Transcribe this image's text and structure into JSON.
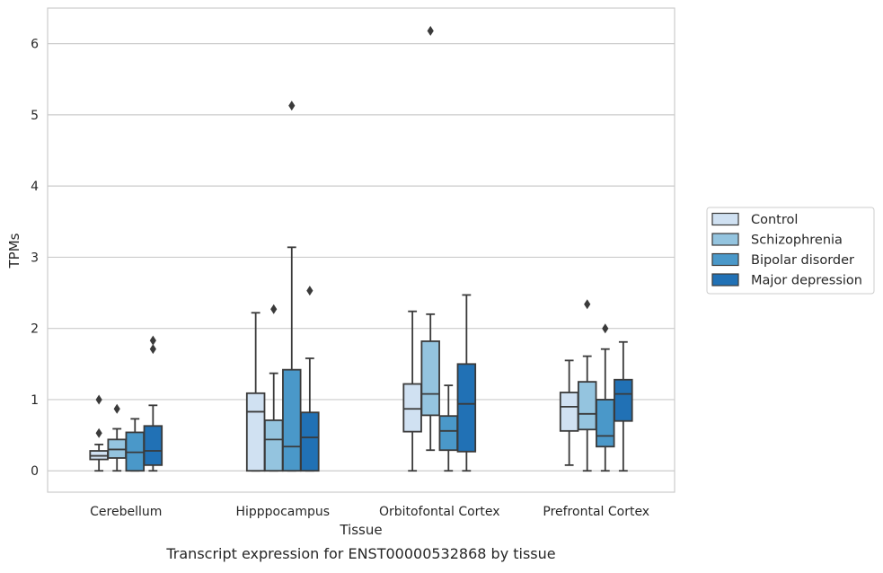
{
  "chart_data": {
    "type": "box",
    "title": "",
    "caption": "Transcript expression for ENST00000532868 by tissue",
    "xlabel": "Tissue",
    "ylabel": "TPMs",
    "ylim": [
      -0.3,
      6.5
    ],
    "yticks": [
      0,
      1,
      2,
      3,
      4,
      5,
      6
    ],
    "grid": "horizontal",
    "legend_position": "right",
    "categories": [
      "Cerebellum",
      "Hipppocampus",
      "Orbitofontal Cortex",
      "Prefrontal Cortex"
    ],
    "series": [
      {
        "name": "Control",
        "color": "#d0e1f2",
        "boxes": [
          {
            "whislo": 0.0,
            "q1": 0.16,
            "med": 0.21,
            "q3": 0.28,
            "whishi": 0.37,
            "fliers": [
              0.53,
              1.0
            ]
          },
          {
            "whislo": 0.0,
            "q1": 0.0,
            "med": 0.83,
            "q3": 1.09,
            "whishi": 2.22,
            "fliers": []
          },
          {
            "whislo": 0.0,
            "q1": 0.55,
            "med": 0.87,
            "q3": 1.22,
            "whishi": 2.24,
            "fliers": []
          },
          {
            "whislo": 0.08,
            "q1": 0.56,
            "med": 0.9,
            "q3": 1.1,
            "whishi": 1.55,
            "fliers": []
          }
        ]
      },
      {
        "name": "Schizophrenia",
        "color": "#94c4df",
        "boxes": [
          {
            "whislo": 0.0,
            "q1": 0.18,
            "med": 0.3,
            "q3": 0.44,
            "whishi": 0.59,
            "fliers": [
              0.87
            ]
          },
          {
            "whislo": 0.0,
            "q1": 0.0,
            "med": 0.44,
            "q3": 0.71,
            "whishi": 1.37,
            "fliers": [
              2.27
            ]
          },
          {
            "whislo": 0.29,
            "q1": 0.78,
            "med": 1.08,
            "q3": 1.82,
            "whishi": 2.2,
            "fliers": [
              6.18
            ]
          },
          {
            "whislo": 0.0,
            "q1": 0.58,
            "med": 0.8,
            "q3": 1.25,
            "whishi": 1.61,
            "fliers": [
              2.34
            ]
          }
        ]
      },
      {
        "name": "Bipolar disorder",
        "color": "#4a98c9",
        "boxes": [
          {
            "whislo": 0.0,
            "q1": 0.0,
            "med": 0.26,
            "q3": 0.54,
            "whishi": 0.73,
            "fliers": []
          },
          {
            "whislo": 0.0,
            "q1": 0.0,
            "med": 0.34,
            "q3": 1.42,
            "whishi": 3.14,
            "fliers": [
              5.13
            ]
          },
          {
            "whislo": 0.0,
            "q1": 0.29,
            "med": 0.56,
            "q3": 0.77,
            "whishi": 1.2,
            "fliers": []
          },
          {
            "whislo": 0.0,
            "q1": 0.34,
            "med": 0.49,
            "q3": 1.0,
            "whishi": 1.71,
            "fliers": [
              2.0
            ]
          }
        ]
      },
      {
        "name": "Major depression",
        "color": "#2171b5",
        "boxes": [
          {
            "whislo": 0.0,
            "q1": 0.08,
            "med": 0.28,
            "q3": 0.63,
            "whishi": 0.92,
            "fliers": [
              1.71,
              1.83
            ]
          },
          {
            "whislo": 0.0,
            "q1": 0.0,
            "med": 0.47,
            "q3": 0.82,
            "whishi": 1.58,
            "fliers": [
              2.53
            ]
          },
          {
            "whislo": 0.0,
            "q1": 0.27,
            "med": 0.94,
            "q3": 1.5,
            "whishi": 2.47,
            "fliers": []
          },
          {
            "whislo": 0.0,
            "q1": 0.7,
            "med": 1.08,
            "q3": 1.28,
            "whishi": 1.81,
            "fliers": []
          }
        ]
      }
    ]
  }
}
